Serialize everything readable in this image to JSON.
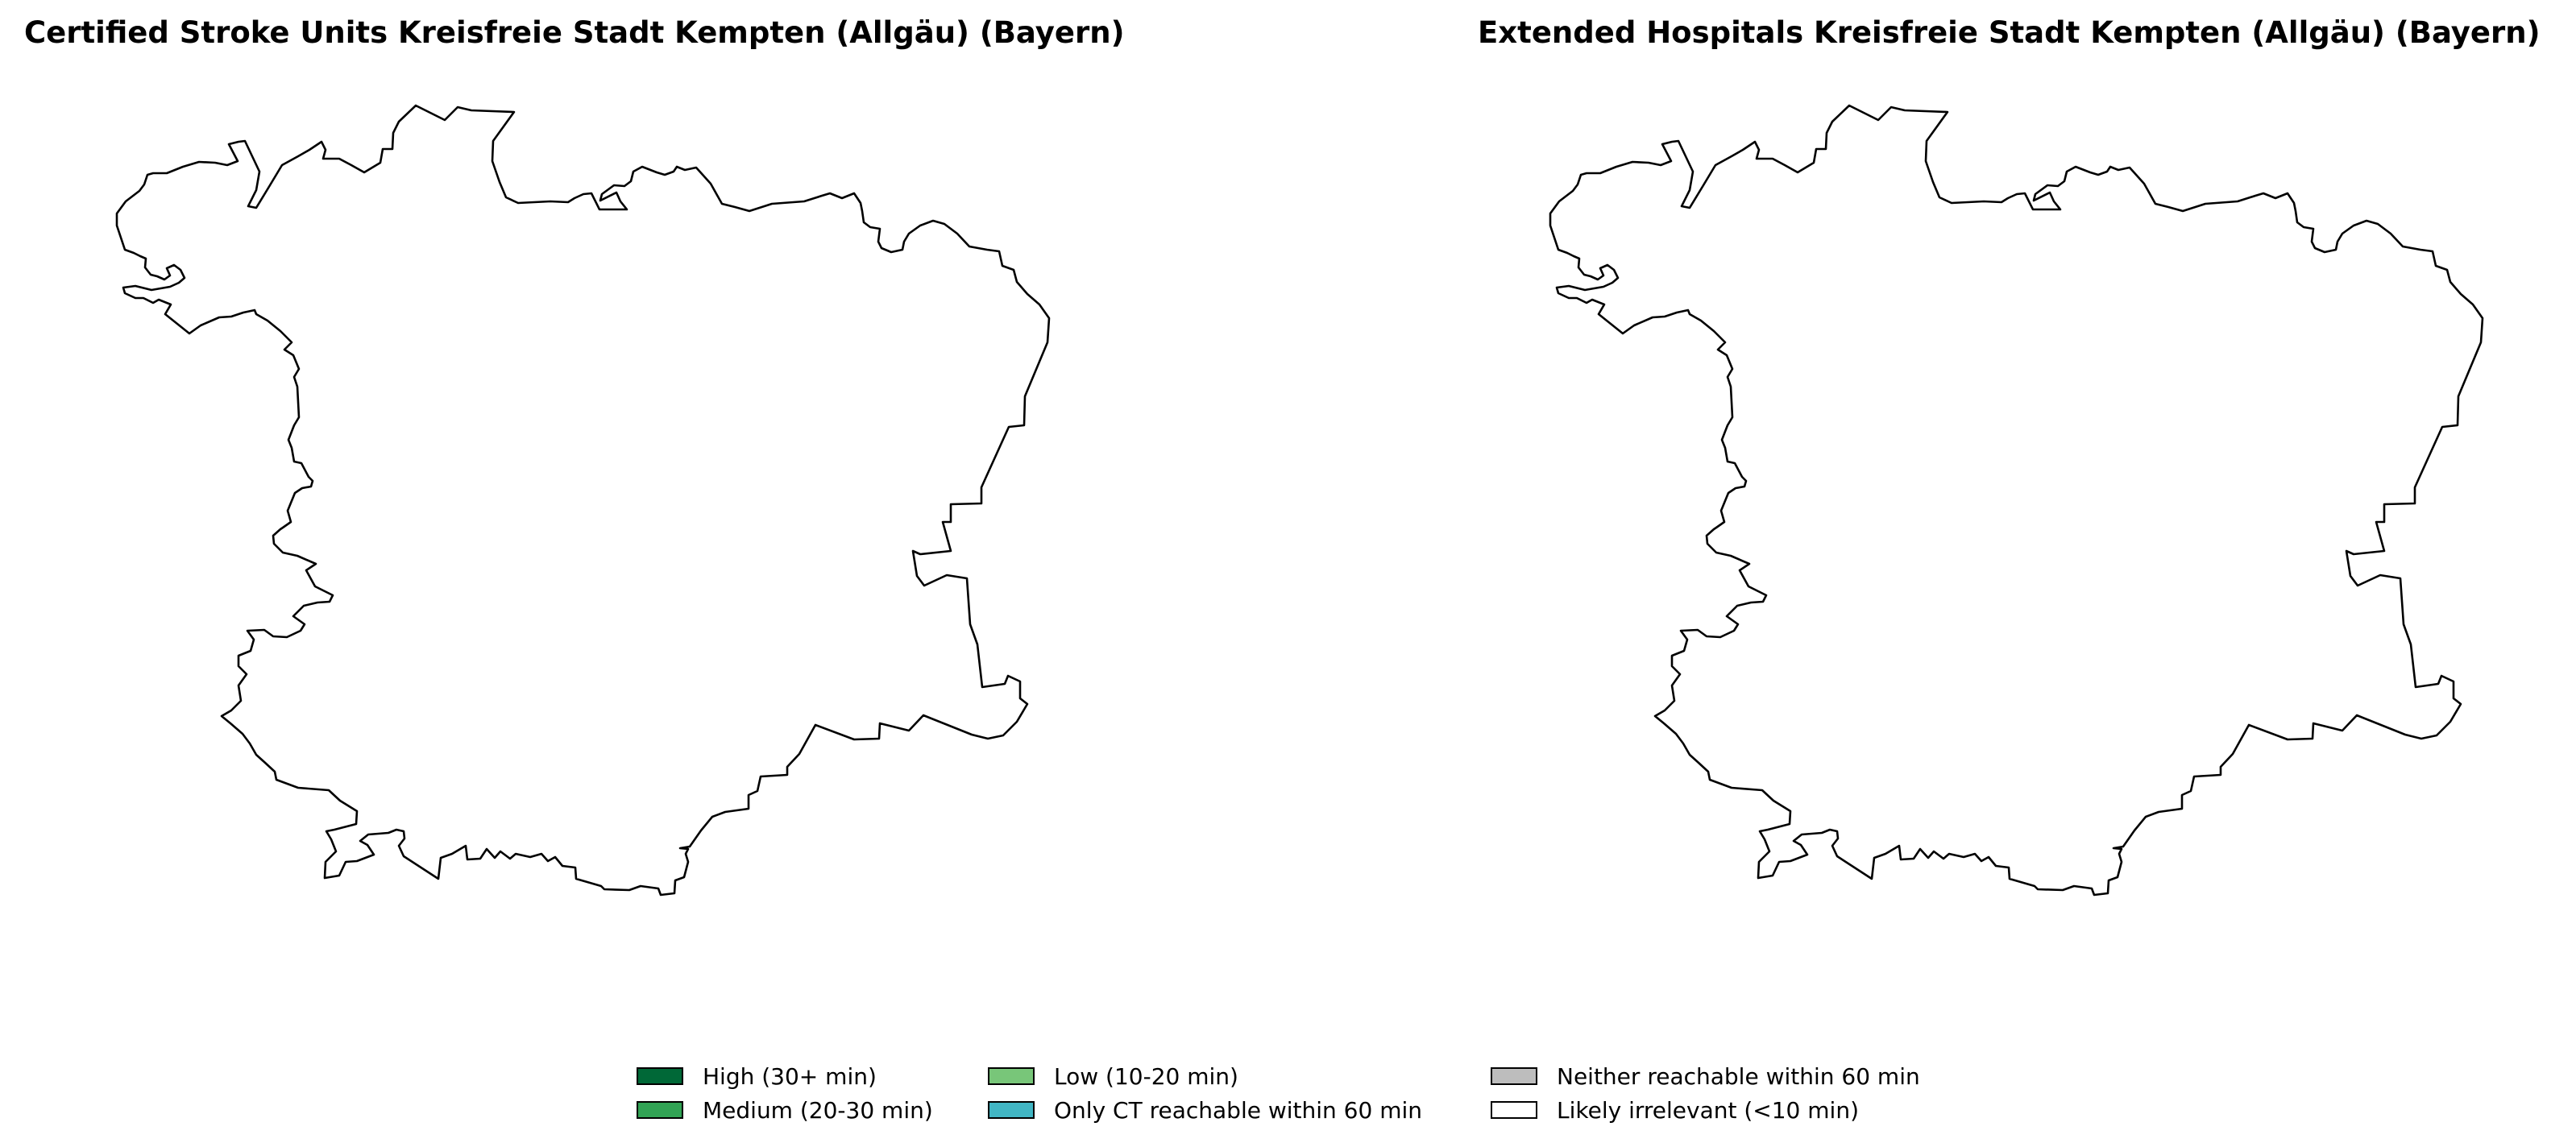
{
  "panels": [
    {
      "title": "Certified Stroke Units Kreisfreie Stadt Kempten (Allgäu) (Bayern)"
    },
    {
      "title": "Extended Hospitals Kreisfreie Stadt Kempten (Allgäu) (Bayern)"
    }
  ],
  "legend": {
    "items": [
      {
        "label": "High (30+ min)",
        "color": "#006837"
      },
      {
        "label": "Medium (20-30 min)",
        "color": "#31a354"
      },
      {
        "label": "Low (10-20 min)",
        "color": "#78c679"
      },
      {
        "label": "Only CT reachable within 60 min",
        "color": "#41b6c4"
      },
      {
        "label": "Neither reachable within 60 min",
        "color": "#bdbdbd"
      },
      {
        "label": "Likely irrelevant (<10 min)",
        "color": "#ffffff"
      }
    ]
  },
  "colors": {
    "outline": "#000000",
    "background": "#ffffff"
  }
}
